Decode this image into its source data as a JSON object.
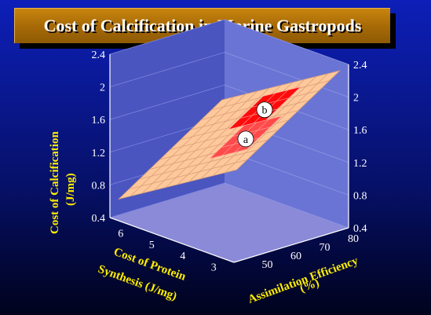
{
  "title": "Cost of Calcification in Marine Gastropods",
  "chart_data": {
    "type": "surface",
    "z_axis": {
      "label_line1": "Cost of Calcification",
      "label_line2": "(J/mg)",
      "ticks": [
        0.4,
        0.8,
        1.2,
        1.6,
        2,
        2.4
      ],
      "range": [
        0.4,
        2.4
      ]
    },
    "x_axis": {
      "label_line1": "Cost of Protein",
      "label_line2": "Synthesis (J/mg)",
      "ticks": [
        3,
        4,
        5,
        6
      ],
      "range": [
        2.6,
        6.6
      ]
    },
    "y_axis": {
      "label_line1": "Assimilation Efficiency",
      "label_line2": "(%)",
      "ticks": [
        50,
        60,
        70,
        80
      ],
      "range": [
        40,
        80
      ]
    },
    "surface": {
      "grid_rows": 10,
      "grid_cols": 10,
      "z_at_corners": {
        "low_protein_high_eff": 2.4,
        "high_protein_low_eff": 0.55
      }
    },
    "regions": [
      {
        "label": "a",
        "description_color": "#ff4a4a",
        "protein_range": [
          3.1,
          4.3
        ],
        "efficiency_range": [
          50,
          62
        ]
      },
      {
        "label": "b",
        "description_color": "#ff0a0a",
        "protein_range": [
          3.6,
          4.8
        ],
        "efficiency_range": [
          62,
          74
        ]
      }
    ],
    "colors": {
      "surface": "#ffc89a",
      "grid": "#d8a07a",
      "region_a": "#ff4a4a",
      "region_b": "#ff0a0a",
      "walls": "#5c66c8",
      "floor": "#8a8ad8"
    }
  }
}
